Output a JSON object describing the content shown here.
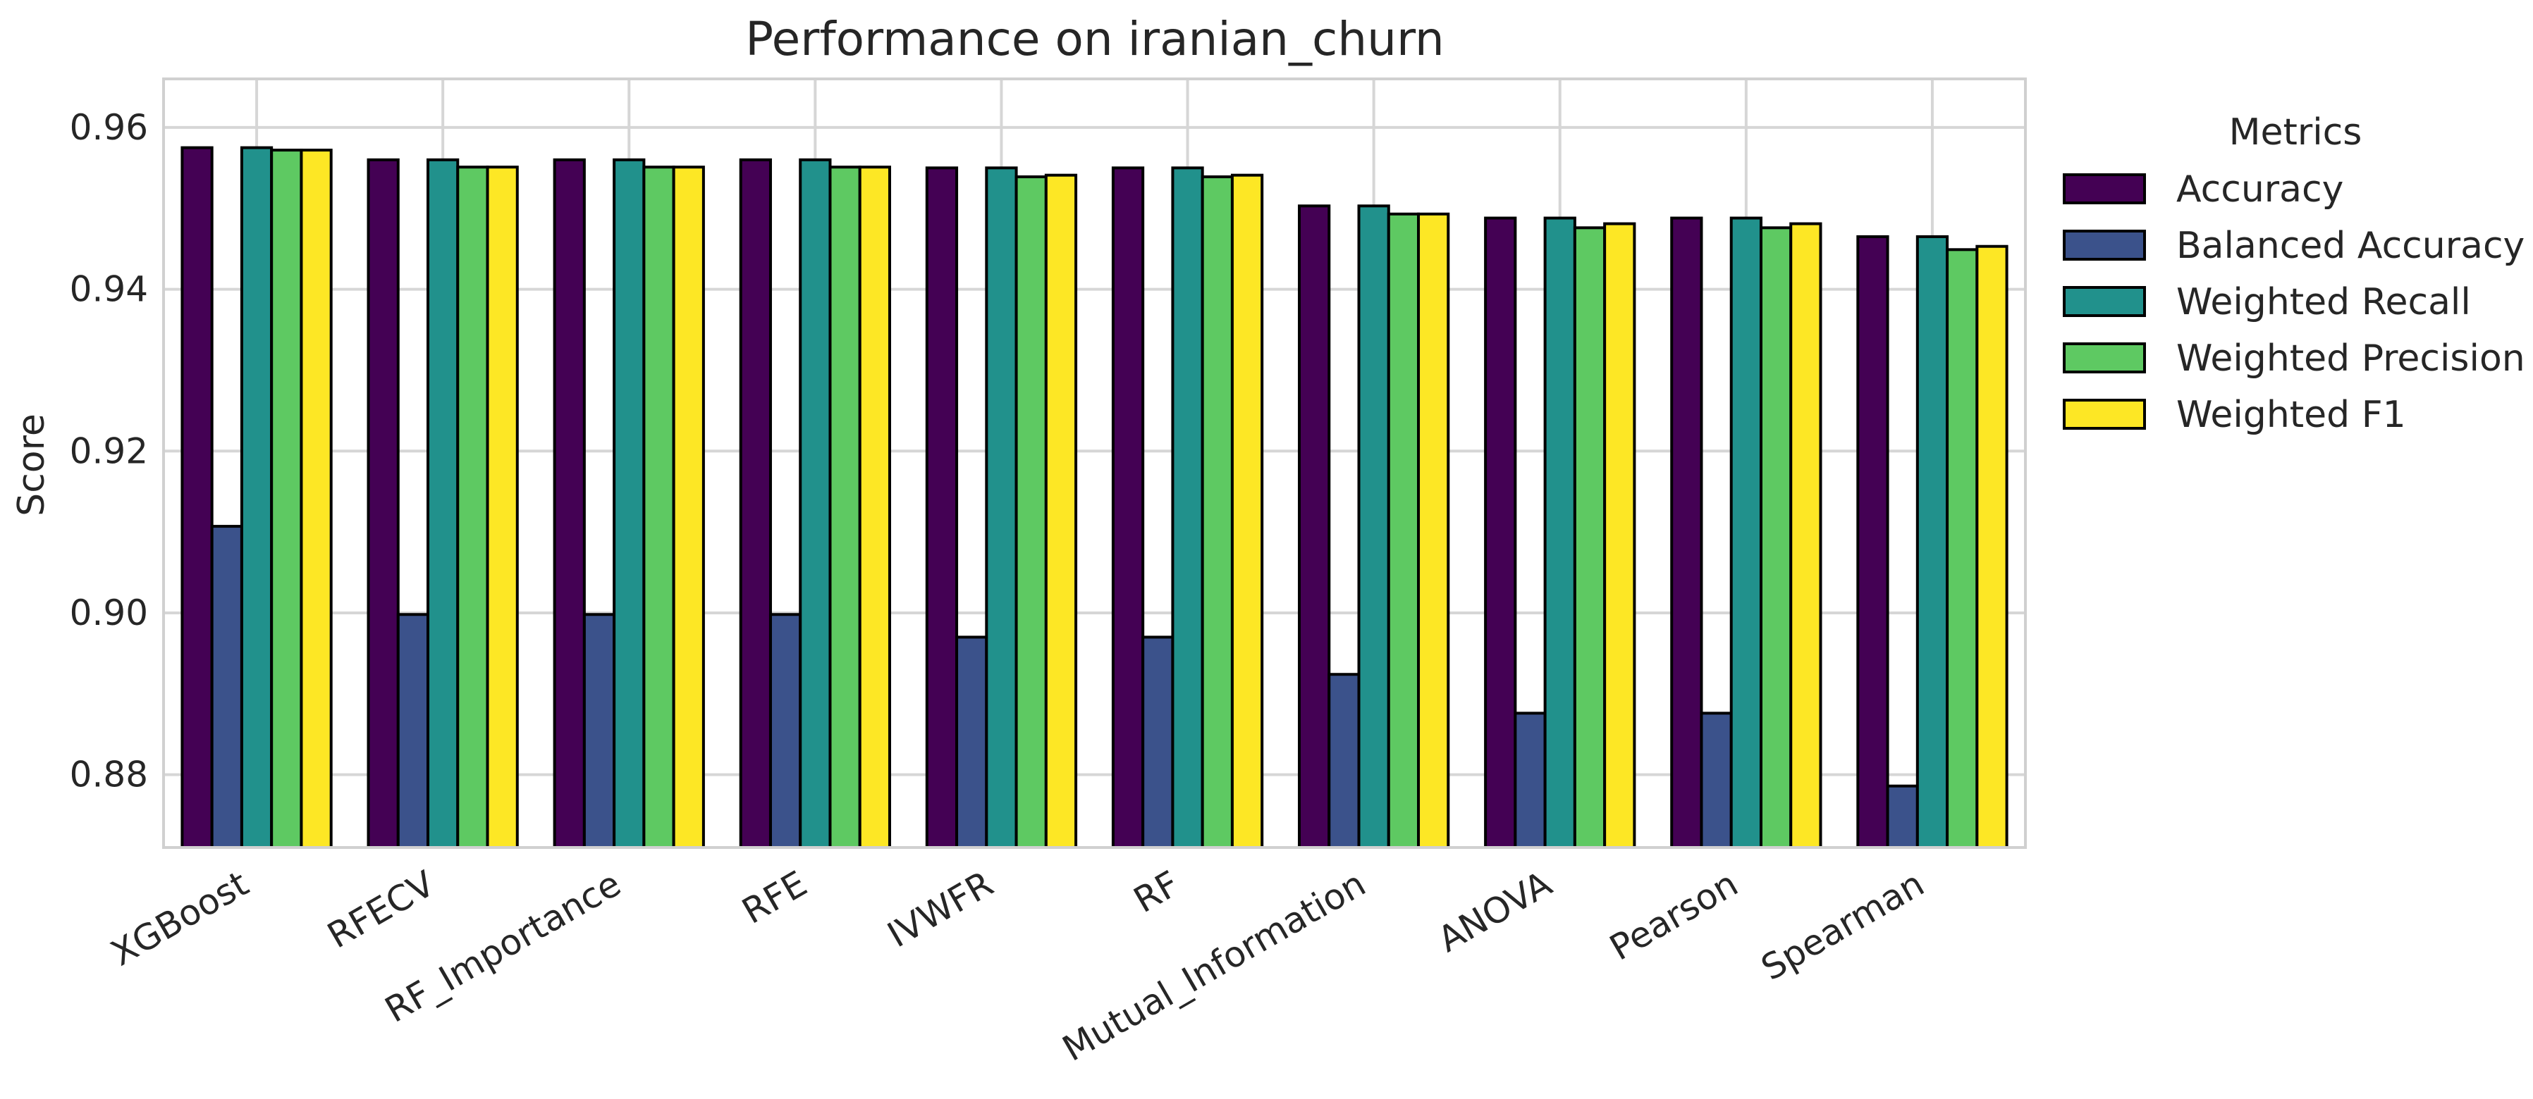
{
  "chart_data": {
    "type": "bar",
    "title": "Performance on iranian_churn",
    "xlabel": "",
    "ylabel": "Score",
    "ylim": [
      0.871,
      0.966
    ],
    "yticks": [
      "0.88",
      "0.90",
      "0.92",
      "0.94",
      "0.96"
    ],
    "grid": true,
    "legend": {
      "title": "Metrics",
      "placement": "outside-right"
    },
    "categories": [
      "XGBoost",
      "RFECV",
      "RF_Importance",
      "RFE",
      "IVWFR",
      "RF",
      "Mutual_Information",
      "ANOVA",
      "Pearson",
      "Spearman"
    ],
    "series": [
      {
        "name": "Accuracy",
        "color": "#440154",
        "values": [
          0.9575,
          0.956,
          0.956,
          0.956,
          0.955,
          0.955,
          0.9503,
          0.9488,
          0.9488,
          0.9465
        ]
      },
      {
        "name": "Balanced Accuracy",
        "color": "#3b528b",
        "values": [
          0.9107,
          0.8998,
          0.8998,
          0.8998,
          0.897,
          0.897,
          0.8924,
          0.8876,
          0.8876,
          0.8786
        ]
      },
      {
        "name": "Weighted Recall",
        "color": "#21918c",
        "values": [
          0.9575,
          0.956,
          0.956,
          0.956,
          0.955,
          0.955,
          0.9503,
          0.9488,
          0.9488,
          0.9465
        ]
      },
      {
        "name": "Weighted Precision",
        "color": "#5ec962",
        "values": [
          0.9572,
          0.9551,
          0.9551,
          0.9551,
          0.9539,
          0.9539,
          0.9493,
          0.9476,
          0.9476,
          0.9449
        ]
      },
      {
        "name": "Weighted F1",
        "color": "#fde725",
        "values": [
          0.9572,
          0.9551,
          0.9551,
          0.9551,
          0.9541,
          0.9541,
          0.9493,
          0.9481,
          0.9481,
          0.9453
        ]
      }
    ]
  }
}
